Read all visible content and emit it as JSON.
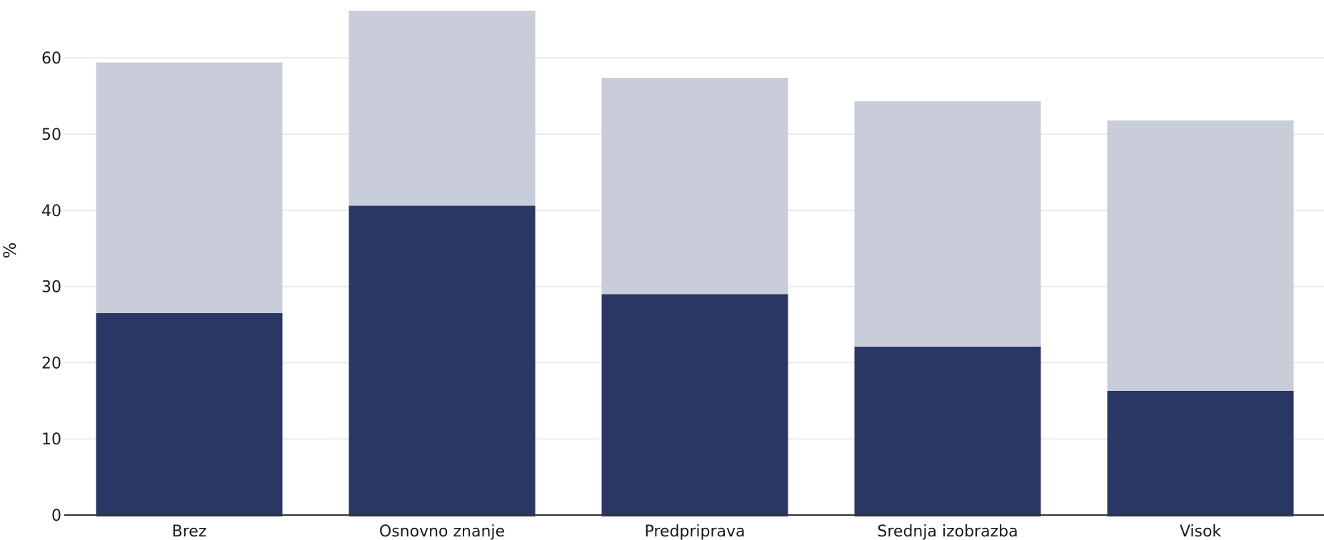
{
  "colors": {
    "background": "#ffffff",
    "grid": "#e9eaee",
    "axis": "#333333",
    "bottom_segment": "#2a3664",
    "top_segment": "#c9ccd9"
  },
  "chart_data": {
    "type": "bar",
    "stacked": true,
    "title": "",
    "xlabel": "",
    "ylabel": "%",
    "ylim": [
      0,
      67
    ],
    "yticks": [
      "0",
      "10",
      "20",
      "30",
      "40",
      "50",
      "60"
    ],
    "grid": true,
    "categories": [
      "Brez",
      "Osnovno znanje",
      "Predpriprava",
      "Srednja izobrazba",
      "Visok"
    ],
    "series": [
      {
        "values": [
          26.5,
          40.6,
          29.0,
          22.1,
          16.3
        ]
      },
      {
        "values": [
          32.9,
          25.6,
          28.4,
          32.2,
          35.5
        ]
      }
    ]
  }
}
